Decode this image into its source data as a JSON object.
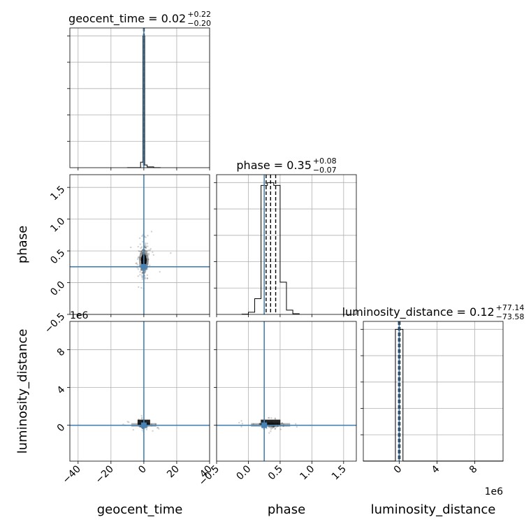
{
  "chart_data": {
    "type": "corner",
    "parameters": [
      {
        "key": "geocent_time",
        "label": "geocent_time",
        "range": [
          -45,
          40
        ],
        "ticks": [
          -40,
          -20,
          0,
          20,
          40
        ],
        "tick_labels": [
          "−40",
          "−20",
          "0",
          "20",
          "40"
        ],
        "truth": 0
      },
      {
        "key": "phase",
        "label": "phase",
        "range": [
          -0.5,
          1.7
        ],
        "ticks": [
          -0.5,
          0.0,
          0.5,
          1.0,
          1.5
        ],
        "tick_labels": [
          "−0.5",
          "0.0",
          "0.5",
          "1.0",
          "1.5"
        ],
        "truth": 0.25
      },
      {
        "key": "luminosity_distance",
        "label": "luminosity_distance",
        "range": [
          -3.8,
          11
        ],
        "ticks": [
          0,
          4,
          8
        ],
        "tick_labels": [
          "0",
          "4",
          "8"
        ],
        "offset_text": "1e6",
        "truth": 0
      }
    ],
    "titles": [
      {
        "name": "geocent_time",
        "value": "0.02",
        "plus": "+0.22",
        "minus": "−0.20"
      },
      {
        "name": "phase",
        "value": "0.35",
        "plus": "+0.08",
        "minus": "−0.07"
      },
      {
        "name": "luminosity_distance",
        "value": "0.12",
        "plus": "+77.14",
        "minus": "−73.58"
      }
    ],
    "histograms": [
      {
        "param": "geocent_time",
        "bin_edges": [
          -10,
          -6,
          -2,
          -0.5,
          0.5,
          2,
          6,
          10
        ],
        "counts": [
          2,
          4,
          200,
          4800,
          100,
          30,
          2
        ],
        "quantiles": [
          -0.18,
          0.02,
          0.24
        ]
      },
      {
        "param": "phase",
        "bin_edges": [
          -0.1,
          0.0,
          0.1,
          0.2,
          0.3,
          0.4,
          0.5,
          0.6,
          0.7,
          0.8
        ],
        "counts": [
          2,
          15,
          110,
          900,
          920,
          900,
          225,
          30,
          5
        ],
        "quantiles": [
          0.28,
          0.35,
          0.43
        ]
      },
      {
        "param": "luminosity_distance",
        "bin_edges": [
          -3.8,
          -0.4,
          0.4,
          11
        ],
        "counts": [
          2,
          4800,
          2
        ],
        "quantiles": [
          -0.07,
          0.0,
          0.08
        ]
      }
    ],
    "scatter_2d": [
      {
        "x": "geocent_time",
        "y": "phase",
        "center": [
          0,
          0.35
        ],
        "spread": [
          1.2,
          0.12
        ]
      },
      {
        "x": "geocent_time",
        "y": "luminosity_distance",
        "center": [
          0,
          0
        ],
        "spread": [
          1.5,
          0.2
        ]
      },
      {
        "x": "phase",
        "y": "luminosity_distance",
        "center": [
          0.35,
          0
        ],
        "spread": [
          0.1,
          0.2
        ]
      }
    ],
    "grid": true,
    "truth_color": "#4682b4"
  }
}
